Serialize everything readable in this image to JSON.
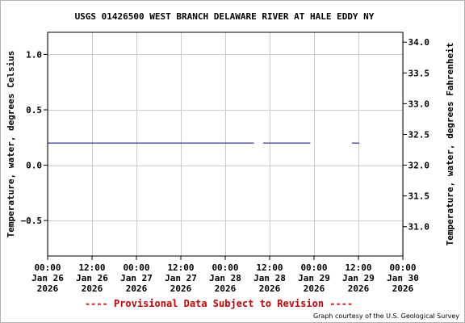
{
  "chart_data": {
    "type": "line",
    "title": "USGS 01426500 WEST BRANCH DELAWARE RIVER AT HALE EDDY NY",
    "ylabel": "Temperature, water, degrees Celsius",
    "ylabel_right": "Temperature, water, degrees Fahrenheit",
    "ylim": [
      -0.82,
      1.2
    ],
    "ylim_right": [
      30.524,
      34.16
    ],
    "xlim_hours": [
      0,
      96
    ],
    "y_ticks": [
      {
        "value": 1.0,
        "label": "1.0"
      },
      {
        "value": 0.5,
        "label": "0.5"
      },
      {
        "value": 0.0,
        "label": "0.0"
      },
      {
        "value": -0.5,
        "label": "−0.5"
      }
    ],
    "y_ticks_right": [
      {
        "value": 34.0,
        "label": "34.0"
      },
      {
        "value": 33.5,
        "label": "33.5"
      },
      {
        "value": 33.0,
        "label": "33.0"
      },
      {
        "value": 32.5,
        "label": "32.5"
      },
      {
        "value": 32.0,
        "label": "32.0"
      },
      {
        "value": 31.5,
        "label": "31.5"
      },
      {
        "value": 31.0,
        "label": "31.0"
      }
    ],
    "x_ticks": [
      {
        "hour": 0,
        "lines": [
          "00:00",
          "Jan 26",
          "2026"
        ]
      },
      {
        "hour": 12,
        "lines": [
          "12:00",
          "Jan 26",
          "2026"
        ]
      },
      {
        "hour": 24,
        "lines": [
          "00:00",
          "Jan 27",
          "2026"
        ]
      },
      {
        "hour": 36,
        "lines": [
          "12:00",
          "Jan 27",
          "2026"
        ]
      },
      {
        "hour": 48,
        "lines": [
          "00:00",
          "Jan 28",
          "2026"
        ]
      },
      {
        "hour": 60,
        "lines": [
          "12:00",
          "Jan 28",
          "2026"
        ]
      },
      {
        "hour": 72,
        "lines": [
          "00:00",
          "Jan 29",
          "2026"
        ]
      },
      {
        "hour": 84,
        "lines": [
          "12:00",
          "Jan 29",
          "2026"
        ]
      },
      {
        "hour": 96,
        "lines": [
          "00:00",
          "Jan 30",
          "2026"
        ]
      }
    ],
    "series": [
      {
        "color": "#00008b",
        "segments": [
          {
            "x": [
              "2026-01-26 00:00",
              "2026-01-28 07:45"
            ],
            "y": [
              0.2,
              0.2
            ]
          },
          {
            "x": [
              "2026-01-28 10:15",
              "2026-01-28 23:00"
            ],
            "y": [
              0.2,
              0.2
            ]
          },
          {
            "x": [
              "2026-01-29 10:15",
              "2026-01-29 12:15"
            ],
            "y": [
              0.2,
              0.2
            ]
          }
        ]
      }
    ],
    "grid": true
  },
  "footer": {
    "provisional": "---- Provisional Data Subject to Revision ----",
    "courtesy": "Graph courtesy of the U.S. Geological Survey"
  },
  "colors": {
    "series": "#00008b",
    "grid": "#cccccc",
    "provisional": "#cc0000"
  }
}
